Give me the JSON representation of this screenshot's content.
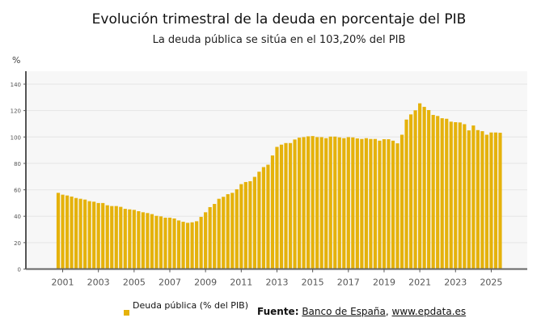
{
  "chart_data": {
    "type": "bar",
    "title": "Evolución trimestral de la deuda en porcentaje del PIB",
    "subtitle": "La deuda pública se sitúa en el 103,20% del PIB",
    "ylabel": "%",
    "xlabel": "",
    "ylim": [
      0,
      140
    ],
    "yticks": [
      0,
      20,
      40,
      60,
      80,
      100,
      120,
      140
    ],
    "xticks": [
      "2001",
      "2003",
      "2005",
      "2007",
      "2009",
      "2011",
      "2013",
      "2015",
      "2017",
      "2019",
      "2021",
      "2023",
      "2025"
    ],
    "grid": true,
    "bar_color": "#e5b20b",
    "series": [
      {
        "name": "Deuda pública (% del PIB)",
        "values": [
          57.7,
          56.3,
          55.7,
          54.9,
          53.8,
          53.2,
          52.6,
          51.4,
          51.0,
          50.0,
          50.0,
          48.3,
          47.7,
          47.7,
          47.1,
          45.6,
          45.2,
          44.8,
          43.8,
          43.0,
          42.4,
          41.6,
          40.3,
          39.9,
          38.9,
          38.9,
          38.3,
          36.8,
          35.8,
          35.0,
          35.4,
          36.2,
          39.5,
          43.0,
          46.9,
          49.3,
          53.2,
          54.7,
          56.7,
          57.7,
          60.4,
          64.3,
          65.9,
          66.5,
          69.8,
          73.7,
          77.2,
          79.0,
          86.0,
          92.5,
          94.2,
          95.4,
          95.4,
          98.1,
          99.5,
          99.9,
          100.5,
          100.7,
          99.9,
          99.9,
          99.1,
          100.3,
          100.3,
          99.7,
          99.1,
          99.9,
          99.7,
          98.9,
          98.5,
          99.1,
          98.5,
          98.5,
          97.2,
          98.3,
          98.3,
          97.2,
          95.2,
          101.7,
          113.2,
          117.1,
          120.2,
          125.5,
          122.8,
          120.4,
          116.7,
          115.9,
          114.2,
          113.8,
          111.6,
          111.2,
          111.0,
          109.7,
          105.0,
          108.7,
          105.2,
          104.4,
          101.7,
          103.4,
          103.4,
          103.2
        ]
      }
    ],
    "legend": "bottom-left"
  },
  "source": {
    "label": "Fuente:",
    "links": [
      "Banco de España",
      "www.epdata.es"
    ],
    "separator": ","
  }
}
